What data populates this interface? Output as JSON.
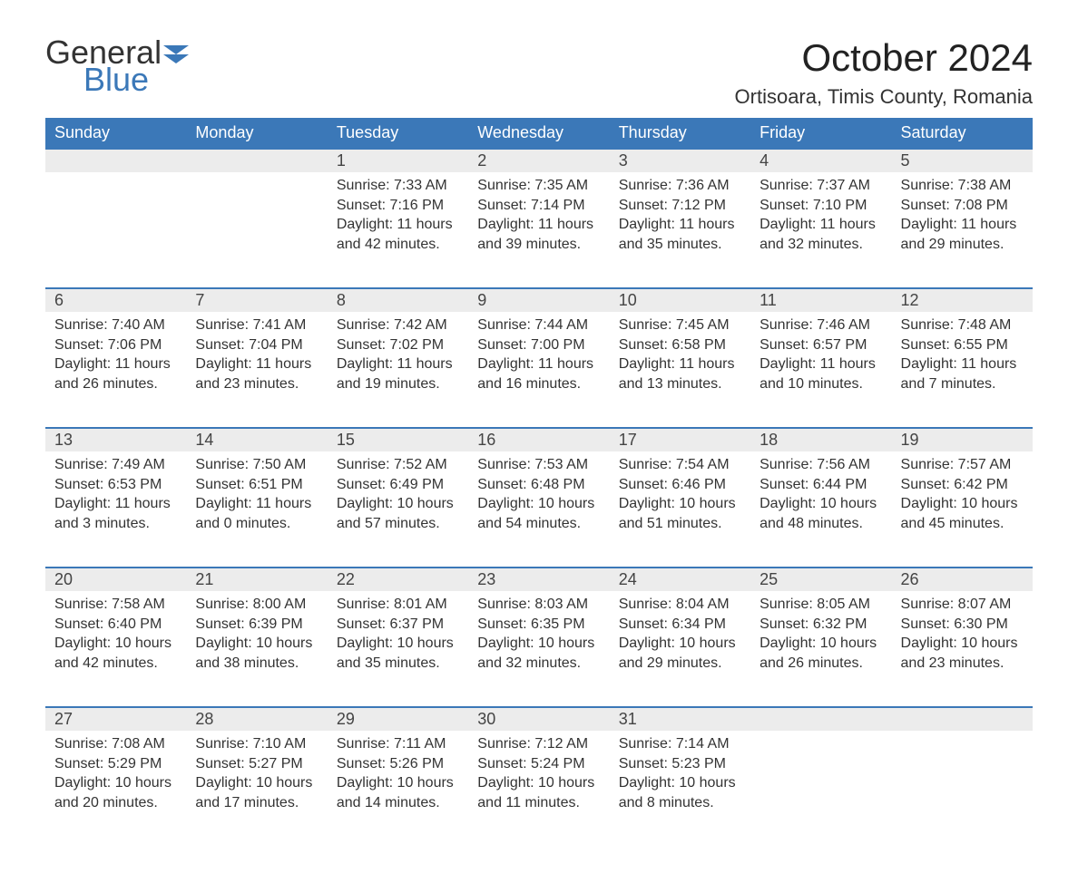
{
  "brand": {
    "word1": "General",
    "word2": "Blue"
  },
  "title": "October 2024",
  "location": "Ortisoara, Timis County, Romania",
  "colors": {
    "header_bg": "#3b78b8",
    "header_text": "#ffffff",
    "daynum_bg": "#ececec",
    "row_border": "#3b78b8",
    "body_text": "#333333",
    "logo_blue": "#3b78b8"
  },
  "weekdays": [
    "Sunday",
    "Monday",
    "Tuesday",
    "Wednesday",
    "Thursday",
    "Friday",
    "Saturday"
  ],
  "weeks": [
    [
      null,
      null,
      {
        "n": "1",
        "sr": "7:33 AM",
        "ss": "7:16 PM",
        "dl": "11 hours and 42 minutes."
      },
      {
        "n": "2",
        "sr": "7:35 AM",
        "ss": "7:14 PM",
        "dl": "11 hours and 39 minutes."
      },
      {
        "n": "3",
        "sr": "7:36 AM",
        "ss": "7:12 PM",
        "dl": "11 hours and 35 minutes."
      },
      {
        "n": "4",
        "sr": "7:37 AM",
        "ss": "7:10 PM",
        "dl": "11 hours and 32 minutes."
      },
      {
        "n": "5",
        "sr": "7:38 AM",
        "ss": "7:08 PM",
        "dl": "11 hours and 29 minutes."
      }
    ],
    [
      {
        "n": "6",
        "sr": "7:40 AM",
        "ss": "7:06 PM",
        "dl": "11 hours and 26 minutes."
      },
      {
        "n": "7",
        "sr": "7:41 AM",
        "ss": "7:04 PM",
        "dl": "11 hours and 23 minutes."
      },
      {
        "n": "8",
        "sr": "7:42 AM",
        "ss": "7:02 PM",
        "dl": "11 hours and 19 minutes."
      },
      {
        "n": "9",
        "sr": "7:44 AM",
        "ss": "7:00 PM",
        "dl": "11 hours and 16 minutes."
      },
      {
        "n": "10",
        "sr": "7:45 AM",
        "ss": "6:58 PM",
        "dl": "11 hours and 13 minutes."
      },
      {
        "n": "11",
        "sr": "7:46 AM",
        "ss": "6:57 PM",
        "dl": "11 hours and 10 minutes."
      },
      {
        "n": "12",
        "sr": "7:48 AM",
        "ss": "6:55 PM",
        "dl": "11 hours and 7 minutes."
      }
    ],
    [
      {
        "n": "13",
        "sr": "7:49 AM",
        "ss": "6:53 PM",
        "dl": "11 hours and 3 minutes."
      },
      {
        "n": "14",
        "sr": "7:50 AM",
        "ss": "6:51 PM",
        "dl": "11 hours and 0 minutes."
      },
      {
        "n": "15",
        "sr": "7:52 AM",
        "ss": "6:49 PM",
        "dl": "10 hours and 57 minutes."
      },
      {
        "n": "16",
        "sr": "7:53 AM",
        "ss": "6:48 PM",
        "dl": "10 hours and 54 minutes."
      },
      {
        "n": "17",
        "sr": "7:54 AM",
        "ss": "6:46 PM",
        "dl": "10 hours and 51 minutes."
      },
      {
        "n": "18",
        "sr": "7:56 AM",
        "ss": "6:44 PM",
        "dl": "10 hours and 48 minutes."
      },
      {
        "n": "19",
        "sr": "7:57 AM",
        "ss": "6:42 PM",
        "dl": "10 hours and 45 minutes."
      }
    ],
    [
      {
        "n": "20",
        "sr": "7:58 AM",
        "ss": "6:40 PM",
        "dl": "10 hours and 42 minutes."
      },
      {
        "n": "21",
        "sr": "8:00 AM",
        "ss": "6:39 PM",
        "dl": "10 hours and 38 minutes."
      },
      {
        "n": "22",
        "sr": "8:01 AM",
        "ss": "6:37 PM",
        "dl": "10 hours and 35 minutes."
      },
      {
        "n": "23",
        "sr": "8:03 AM",
        "ss": "6:35 PM",
        "dl": "10 hours and 32 minutes."
      },
      {
        "n": "24",
        "sr": "8:04 AM",
        "ss": "6:34 PM",
        "dl": "10 hours and 29 minutes."
      },
      {
        "n": "25",
        "sr": "8:05 AM",
        "ss": "6:32 PM",
        "dl": "10 hours and 26 minutes."
      },
      {
        "n": "26",
        "sr": "8:07 AM",
        "ss": "6:30 PM",
        "dl": "10 hours and 23 minutes."
      }
    ],
    [
      {
        "n": "27",
        "sr": "7:08 AM",
        "ss": "5:29 PM",
        "dl": "10 hours and 20 minutes."
      },
      {
        "n": "28",
        "sr": "7:10 AM",
        "ss": "5:27 PM",
        "dl": "10 hours and 17 minutes."
      },
      {
        "n": "29",
        "sr": "7:11 AM",
        "ss": "5:26 PM",
        "dl": "10 hours and 14 minutes."
      },
      {
        "n": "30",
        "sr": "7:12 AM",
        "ss": "5:24 PM",
        "dl": "10 hours and 11 minutes."
      },
      {
        "n": "31",
        "sr": "7:14 AM",
        "ss": "5:23 PM",
        "dl": "10 hours and 8 minutes."
      },
      null,
      null
    ]
  ],
  "labels": {
    "sunrise": "Sunrise: ",
    "sunset": "Sunset: ",
    "daylight": "Daylight: "
  }
}
